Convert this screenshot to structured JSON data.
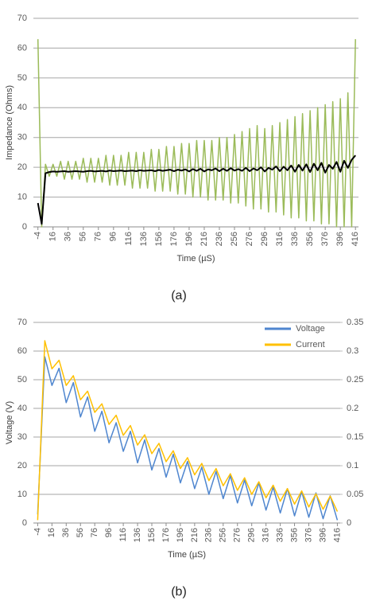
{
  "chart_data": [
    {
      "type": "line",
      "ylabel": "Impedance (Ohms)",
      "xlabel": "Time (µS)",
      "caption": "(a)",
      "x": [
        -4,
        1,
        6,
        11,
        16,
        21,
        26,
        31,
        36,
        41,
        46,
        51,
        56,
        61,
        66,
        71,
        76,
        81,
        86,
        91,
        96,
        101,
        106,
        111,
        116,
        121,
        126,
        131,
        136,
        141,
        146,
        151,
        156,
        161,
        166,
        171,
        176,
        181,
        186,
        191,
        196,
        201,
        206,
        211,
        216,
        221,
        226,
        231,
        236,
        241,
        246,
        251,
        256,
        261,
        266,
        271,
        276,
        281,
        286,
        291,
        296,
        301,
        306,
        311,
        316,
        321,
        326,
        331,
        336,
        341,
        346,
        351,
        356,
        361,
        366,
        371,
        376,
        381,
        386,
        391,
        396,
        401,
        406,
        411,
        416
      ],
      "series": [
        {
          "color": "#9bbb59",
          "values": [
            63,
            0,
            21,
            17,
            21,
            17,
            22,
            16,
            22,
            16,
            22,
            16,
            23,
            15,
            23,
            15,
            23,
            15,
            24,
            14,
            24,
            14,
            24,
            14,
            25,
            13,
            25,
            13,
            25,
            13,
            26,
            12,
            26,
            12,
            27,
            12,
            27,
            11,
            28,
            11,
            28,
            10,
            29,
            10,
            29,
            9,
            29,
            9,
            30,
            9,
            30,
            8,
            31,
            8,
            32,
            7,
            33,
            6,
            34,
            6,
            33,
            5,
            34,
            5,
            35,
            4,
            36,
            3,
            37,
            3,
            38,
            2,
            39,
            2,
            40,
            1,
            41,
            1,
            42,
            0,
            43,
            0,
            45,
            0,
            63
          ]
        },
        {
          "color": "#000000",
          "values": [
            8,
            1,
            18,
            18.4,
            18.6,
            18.5,
            18.6,
            18.7,
            18.5,
            18.6,
            18.7,
            18.6,
            18.5,
            18.7,
            18.8,
            18.6,
            18.7,
            18.8,
            18.6,
            18.9,
            18.7,
            18.8,
            18.9,
            18.7,
            18.8,
            18.9,
            18.7,
            19,
            18.8,
            18.9,
            19,
            18.7,
            19.1,
            18.8,
            19,
            19.2,
            18.7,
            19.2,
            18.9,
            19.3,
            18.6,
            19.4,
            18.8,
            19.5,
            18.6,
            19.3,
            19,
            19.6,
            18.7,
            19.5,
            18.8,
            19.7,
            18.9,
            19.4,
            18.8,
            19.8,
            18.7,
            19.6,
            19,
            20,
            18.6,
            19.8,
            19.2,
            20.3,
            18.7,
            20.2,
            19,
            20.6,
            18.5,
            20.8,
            18.9,
            21,
            18.4,
            21.2,
            19,
            21.5,
            18.2,
            20.8,
            19.5,
            21.8,
            18.5,
            22.2,
            19.8,
            22.5,
            24
          ]
        }
      ],
      "xlim": [
        -10,
        420
      ],
      "xticks": [
        -4,
        16,
        36,
        56,
        76,
        96,
        116,
        136,
        156,
        176,
        196,
        216,
        236,
        256,
        276,
        296,
        316,
        336,
        356,
        376,
        396,
        416
      ],
      "ylim": [
        0,
        70
      ],
      "yticks": [
        0,
        10,
        20,
        30,
        40,
        50,
        60,
        70
      ],
      "grid": true
    },
    {
      "type": "line",
      "ylabel": "Voltage (V)",
      "xlabel": "Time (µS)",
      "caption": "(b)",
      "x": [
        -4,
        6,
        16,
        26,
        36,
        46,
        56,
        66,
        76,
        86,
        96,
        106,
        116,
        126,
        136,
        146,
        156,
        166,
        176,
        186,
        196,
        206,
        216,
        226,
        236,
        246,
        256,
        266,
        276,
        286,
        296,
        306,
        316,
        326,
        336,
        346,
        356,
        366,
        376,
        386,
        396,
        406,
        416
      ],
      "series": [
        {
          "name": "Voltage",
          "color": "#4f86cf",
          "values": [
            3,
            58,
            48,
            54,
            42,
            49,
            37,
            44,
            32,
            39,
            28,
            35,
            25,
            32,
            21,
            29,
            18.5,
            26,
            16,
            24,
            14,
            21.5,
            12,
            19.5,
            10,
            18,
            8.5,
            16.5,
            7,
            15,
            6,
            14,
            4.5,
            12.5,
            3.5,
            12,
            2.5,
            11,
            2,
            10.5,
            1.5,
            9.5,
            1
          ]
        },
        {
          "name": "Current",
          "color": "#ffc000",
          "axis": "y2",
          "values": [
            0.005,
            0.318,
            0.269,
            0.284,
            0.24,
            0.257,
            0.215,
            0.23,
            0.193,
            0.208,
            0.172,
            0.188,
            0.153,
            0.17,
            0.136,
            0.154,
            0.121,
            0.139,
            0.107,
            0.126,
            0.095,
            0.114,
            0.084,
            0.104,
            0.074,
            0.095,
            0.065,
            0.086,
            0.057,
            0.079,
            0.05,
            0.072,
            0.044,
            0.066,
            0.038,
            0.06,
            0.033,
            0.056,
            0.028,
            0.051,
            0.024,
            0.047,
            0.02
          ]
        }
      ],
      "xlim": [
        -10,
        420
      ],
      "xticks": [
        -4,
        16,
        36,
        56,
        76,
        96,
        116,
        136,
        156,
        176,
        196,
        216,
        236,
        256,
        276,
        296,
        316,
        336,
        356,
        376,
        396,
        416
      ],
      "ylim": [
        0,
        70
      ],
      "yticks": [
        0,
        10,
        20,
        30,
        40,
        50,
        60,
        70
      ],
      "y2lim": [
        0,
        0.35
      ],
      "y2ticks": [
        0,
        0.05,
        0.1,
        0.15,
        0.2,
        0.25,
        0.3,
        0.35
      ],
      "grid": true,
      "legend": "upper right"
    }
  ]
}
